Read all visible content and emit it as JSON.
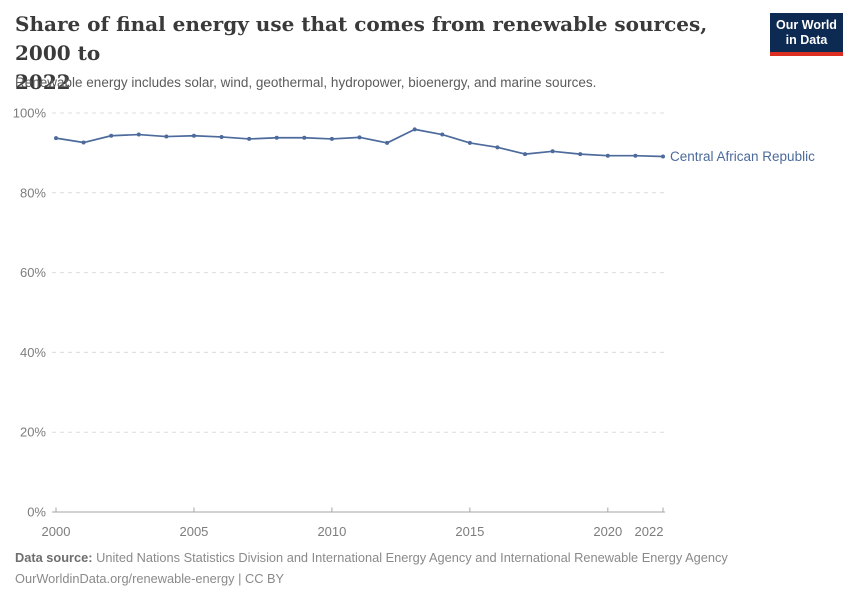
{
  "header": {
    "title_lines": [
      "Share of final energy use that comes from renewable sources, 2000 to",
      "2022"
    ],
    "subtitle": "Renewable energy includes solar, wind, geothermal, hydropower, bioenergy, and marine sources.",
    "logo": {
      "line1": "Our World",
      "line2": "in Data"
    }
  },
  "chart_data": {
    "type": "line",
    "title": "Share of final energy use that comes from renewable sources, 2000 to 2022",
    "subtitle": "Renewable energy includes solar, wind, geothermal, hydropower, bioenergy, and marine sources.",
    "x": [
      2000,
      2001,
      2002,
      2003,
      2004,
      2005,
      2006,
      2007,
      2008,
      2009,
      2010,
      2011,
      2012,
      2013,
      2014,
      2015,
      2016,
      2017,
      2018,
      2019,
      2020,
      2021,
      2022
    ],
    "series": [
      {
        "name": "Central African Republic",
        "color": "#4c6a9c",
        "values": [
          93.7,
          92.6,
          94.3,
          94.6,
          94.1,
          94.3,
          94.0,
          93.5,
          93.8,
          93.8,
          93.5,
          93.9,
          92.5,
          95.9,
          94.6,
          92.5,
          91.4,
          89.7,
          90.4,
          89.7,
          89.3,
          89.3,
          89.1
        ]
      }
    ],
    "xlim": [
      2000,
      2022
    ],
    "ylim": [
      0,
      100
    ],
    "yticks": [
      0,
      20,
      40,
      60,
      80,
      100
    ],
    "ytick_suffix": "%",
    "xticks": [
      2000,
      2005,
      2010,
      2015,
      2020,
      2022
    ],
    "grid": "horizontal-dashed",
    "legend_position": "end-of-line-label"
  },
  "colors": {
    "line": "#4c6a9c",
    "grid": "#dcdcdc",
    "axis": "#a5a5a5",
    "tick_text": "#7d7d7d",
    "logo_bg": "#0d2a52",
    "logo_bar": "#dc2e21"
  },
  "footer": {
    "source_label": "Data source:",
    "source_text": "United Nations Statistics Division and International Energy Agency and International Renewable Energy Agency",
    "note": "OurWorldinData.org/renewable-energy | CC BY"
  }
}
